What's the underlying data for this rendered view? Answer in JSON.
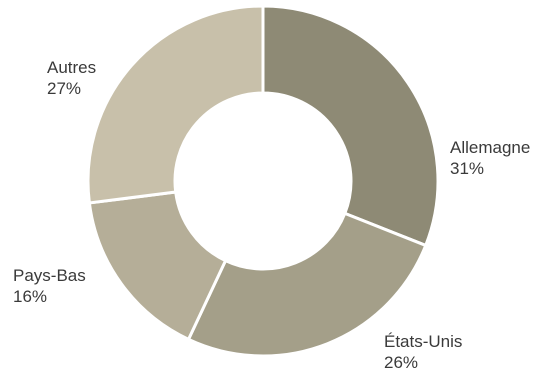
{
  "chart_data": {
    "type": "pie",
    "donut": true,
    "title": "",
    "slices": [
      {
        "label": "Allemagne",
        "value": 31,
        "value_label": "31%",
        "color": "#8e8a75"
      },
      {
        "label": "États-Unis",
        "value": 26,
        "value_label": "26%",
        "color": "#a49f89"
      },
      {
        "label": "Pays-Bas",
        "value": 16,
        "value_label": "16%",
        "color": "#b5ae98"
      },
      {
        "label": "Autres",
        "value": 27,
        "value_label": "27%",
        "color": "#c8c0aa"
      }
    ],
    "legend": "none"
  }
}
